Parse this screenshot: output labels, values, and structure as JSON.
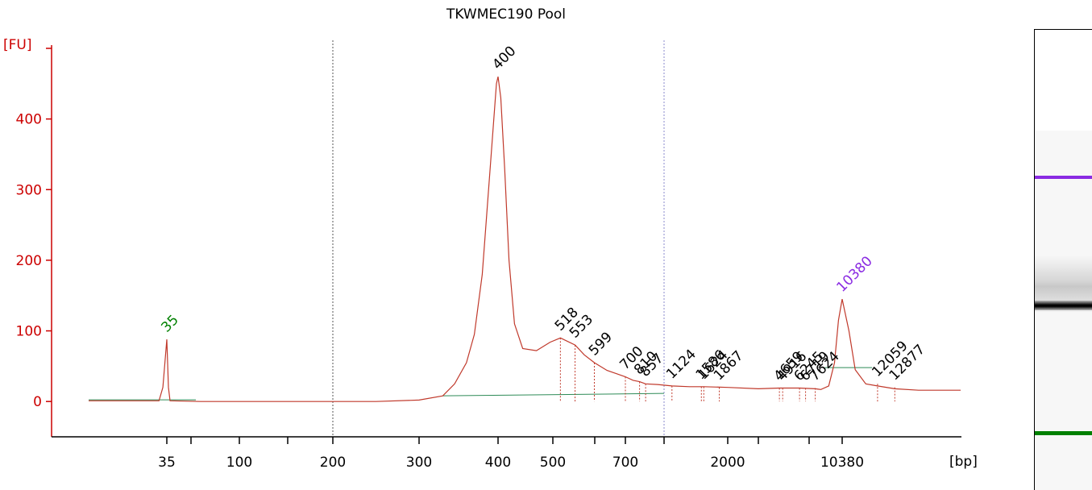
{
  "chart_data": {
    "type": "line",
    "title": "TKWMEC190 Pool",
    "ylabel": "[FU]",
    "xlabel": "[bp]",
    "ylim": [
      -50,
      500
    ],
    "yticks": [
      0,
      100,
      200,
      300,
      400
    ],
    "xtick_labels": [
      {
        "label": "35",
        "x": 35
      },
      {
        "label": "",
        "x": 50
      },
      {
        "label": "100",
        "x": 100
      },
      {
        "label": "",
        "x": 150
      },
      {
        "label": "200",
        "x": 200
      },
      {
        "label": "300",
        "x": 300
      },
      {
        "label": "400",
        "x": 400
      },
      {
        "label": "500",
        "x": 500
      },
      {
        "label": "",
        "x": 600
      },
      {
        "label": "700",
        "x": 700
      },
      {
        "label": "",
        "x": 1000
      },
      {
        "label": "2000",
        "x": 2000
      },
      {
        "label": "",
        "x": 3000
      },
      {
        "label": "",
        "x": 7000
      },
      {
        "label": "10380",
        "x": 10380
      }
    ],
    "region_lines_bp": [
      200,
      1000
    ],
    "baseline_fu": 0,
    "peak_labels": [
      {
        "label": "35",
        "x": 35,
        "y": 88,
        "marker": "lower"
      },
      {
        "label": "400",
        "x": 400,
        "y": 460
      },
      {
        "label": "518",
        "x": 518,
        "y": 90
      },
      {
        "label": "553",
        "x": 553,
        "y": 80
      },
      {
        "label": "599",
        "x": 599,
        "y": 55
      },
      {
        "label": "700",
        "x": 700,
        "y": 35
      },
      {
        "label": "810",
        "x": 810,
        "y": 28
      },
      {
        "label": "857",
        "x": 857,
        "y": 25
      },
      {
        "label": "1124",
        "x": 1124,
        "y": 22
      },
      {
        "label": "1586",
        "x": 1586,
        "y": 21
      },
      {
        "label": "1624",
        "x": 1624,
        "y": 21
      },
      {
        "label": "1867",
        "x": 1867,
        "y": 20
      },
      {
        "label": "4659",
        "x": 4659,
        "y": 19
      },
      {
        "label": "4916",
        "x": 4916,
        "y": 19
      },
      {
        "label": "6245",
        "x": 6245,
        "y": 19
      },
      {
        "label": "6719",
        "x": 6719,
        "y": 19
      },
      {
        "label": "7624",
        "x": 7624,
        "y": 19
      },
      {
        "label": "10380",
        "x": 10380,
        "y": 145,
        "marker": "upper"
      },
      {
        "label": "12059",
        "x": 12059,
        "y": 25
      },
      {
        "label": "12877",
        "x": 12877,
        "y": 20
      }
    ],
    "series": [
      {
        "points": [
          [
            15,
            1
          ],
          [
            30,
            1
          ],
          [
            33,
            1
          ],
          [
            34,
            20
          ],
          [
            35,
            88
          ],
          [
            36,
            20
          ],
          [
            37,
            1
          ],
          [
            60,
            0
          ],
          [
            100,
            0
          ],
          [
            150,
            0
          ],
          [
            200,
            0
          ],
          [
            250,
            0
          ],
          [
            300,
            2
          ],
          [
            330,
            8
          ],
          [
            345,
            25
          ],
          [
            360,
            55
          ],
          [
            370,
            95
          ],
          [
            380,
            180
          ],
          [
            390,
            330
          ],
          [
            398,
            450
          ],
          [
            400,
            460
          ],
          [
            405,
            430
          ],
          [
            412,
            330
          ],
          [
            420,
            200
          ],
          [
            430,
            110
          ],
          [
            445,
            75
          ],
          [
            470,
            72
          ],
          [
            495,
            84
          ],
          [
            518,
            90
          ],
          [
            553,
            80
          ],
          [
            575,
            66
          ],
          [
            599,
            55
          ],
          [
            640,
            44
          ],
          [
            700,
            35
          ],
          [
            760,
            30
          ],
          [
            810,
            28
          ],
          [
            857,
            25
          ],
          [
            950,
            24
          ],
          [
            1124,
            22
          ],
          [
            1400,
            21
          ],
          [
            1624,
            21
          ],
          [
            2000,
            20
          ],
          [
            3000,
            18
          ],
          [
            4659,
            19
          ],
          [
            6245,
            19
          ],
          [
            7624,
            18
          ],
          [
            8200,
            17
          ],
          [
            9000,
            22
          ],
          [
            9600,
            55
          ],
          [
            10000,
            115
          ],
          [
            10380,
            145
          ],
          [
            10700,
            100
          ],
          [
            11000,
            45
          ],
          [
            11500,
            25
          ],
          [
            12059,
            22
          ],
          [
            12877,
            18
          ],
          [
            14000,
            16
          ],
          [
            16000,
            16
          ]
        ]
      }
    ],
    "gel": {
      "upper_marker_color": "#8a2be2",
      "lower_marker_color": "#008000"
    },
    "colors": {
      "axis": "#cc0000",
      "trace": "#c0392b",
      "lower_marker": "#008000",
      "upper_marker": "#8a2be2",
      "baseline": "#2e8b57"
    }
  }
}
